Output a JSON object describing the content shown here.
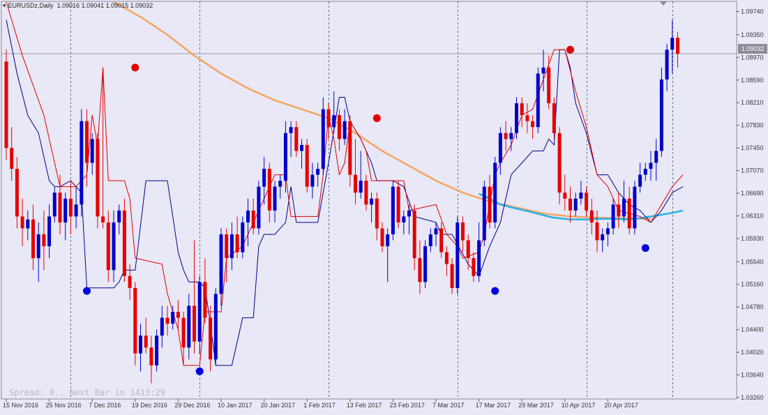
{
  "header": {
    "symbol_timeframe": "EURUSDz,Daily",
    "ohlc": "1.09016 1.09041 1.09015 1.09032"
  },
  "status": {
    "spread_text": "Spread: 0.. Next Bar in 1413:29"
  },
  "current_price": "1.09032",
  "colors": {
    "background": "#e8e8f6",
    "bull": "#0000cc",
    "bear": "#e60000",
    "envelope_upper": "#e00000",
    "envelope_lower": "#000088",
    "ma_long": "#f5a460",
    "ma_short": "#22b4e6",
    "grid": "#607080"
  },
  "chart_data": {
    "type": "candlestick",
    "instrument": "EURUSDz",
    "timeframe": "Daily",
    "y_axis": {
      "ticks": [
        "1.09740",
        "1.09350",
        "1.08970",
        "1.08590",
        "1.08210",
        "1.07830",
        "1.07450",
        "1.07070",
        "1.06690",
        "1.06310",
        "1.05930",
        "1.05540",
        "1.05160",
        "1.04780",
        "1.04400",
        "1.04020",
        "1.03640",
        "1.03260"
      ],
      "range": [
        1.0326,
        1.0984
      ]
    },
    "x_axis": {
      "tick_labels": [
        "15 Nov 2016",
        "25 Nov 2016",
        "7 Dec 2016",
        "19 Dec 2016",
        "29 Dec 2016",
        "10 Jan 2017",
        "20 Jan 2017",
        "1 Feb 2017",
        "13 Feb 2017",
        "23 Feb 2017",
        "7 Mar 2017",
        "17 Mar 2017",
        "29 Mar 2017",
        "10 Apr 2017",
        "20 Apr 2017"
      ],
      "tick_bar_index": [
        0,
        8,
        16,
        24,
        32,
        40,
        48,
        56,
        64,
        72,
        80,
        88,
        96,
        104,
        112
      ]
    },
    "vertical_grid_bar_index": [
      12,
      36,
      60,
      84,
      108,
      124
    ],
    "candles": [
      [
        1.089,
        1.091,
        1.0725,
        1.0745
      ],
      [
        1.0745,
        1.078,
        1.069,
        1.071
      ],
      [
        1.071,
        1.073,
        1.061,
        1.063
      ],
      [
        1.063,
        1.066,
        1.058,
        1.061
      ],
      [
        1.061,
        1.064,
        1.059,
        1.0625
      ],
      [
        1.0625,
        1.065,
        1.054,
        1.056
      ],
      [
        1.056,
        1.062,
        1.052,
        1.06
      ],
      [
        1.06,
        1.064,
        1.054,
        1.058
      ],
      [
        1.058,
        1.065,
        1.056,
        1.063
      ],
      [
        1.063,
        1.068,
        1.062,
        1.067
      ],
      [
        1.067,
        1.07,
        1.06,
        1.062
      ],
      [
        1.062,
        1.067,
        1.059,
        1.066
      ],
      [
        1.066,
        1.069,
        1.06,
        1.063
      ],
      [
        1.063,
        1.068,
        1.061,
        1.065
      ],
      [
        1.065,
        1.081,
        1.063,
        1.079
      ],
      [
        1.079,
        1.081,
        1.068,
        1.072
      ],
      [
        1.072,
        1.077,
        1.07,
        1.076
      ],
      [
        1.076,
        1.077,
        1.061,
        1.063
      ],
      [
        1.063,
        1.088,
        1.061,
        1.062
      ],
      [
        1.062,
        1.064,
        1.052,
        1.054
      ],
      [
        1.054,
        1.064,
        1.052,
        1.062
      ],
      [
        1.062,
        1.065,
        1.06,
        1.064
      ],
      [
        1.064,
        1.066,
        1.052,
        1.053
      ],
      [
        1.053,
        1.055,
        1.049,
        1.051
      ],
      [
        1.051,
        1.052,
        1.038,
        1.04
      ],
      [
        1.04,
        1.045,
        1.037,
        1.043
      ],
      [
        1.043,
        1.046,
        1.04,
        1.041
      ],
      [
        1.041,
        1.043,
        1.035,
        1.038
      ],
      [
        1.038,
        1.044,
        1.037,
        1.043
      ],
      [
        1.043,
        1.048,
        1.041,
        1.046
      ],
      [
        1.046,
        1.048,
        1.043,
        1.045
      ],
      [
        1.045,
        1.048,
        1.044,
        1.047
      ],
      [
        1.047,
        1.049,
        1.044,
        1.046
      ],
      [
        1.046,
        1.047,
        1.038,
        1.041
      ],
      [
        1.041,
        1.05,
        1.039,
        1.048
      ],
      [
        1.048,
        1.059,
        1.04,
        1.042
      ],
      [
        1.042,
        1.053,
        1.04,
        1.052
      ],
      [
        1.052,
        1.056,
        1.045,
        1.046
      ],
      [
        1.046,
        1.048,
        1.037,
        1.039
      ],
      [
        1.039,
        1.051,
        1.038,
        1.05
      ],
      [
        1.05,
        1.061,
        1.048,
        1.06
      ],
      [
        1.06,
        1.061,
        1.052,
        1.056
      ],
      [
        1.056,
        1.062,
        1.054,
        1.06
      ],
      [
        1.06,
        1.063,
        1.056,
        1.057
      ],
      [
        1.057,
        1.063,
        1.056,
        1.062
      ],
      [
        1.062,
        1.066,
        1.058,
        1.064
      ],
      [
        1.064,
        1.066,
        1.06,
        1.061
      ],
      [
        1.061,
        1.069,
        1.06,
        1.068
      ],
      [
        1.068,
        1.073,
        1.065,
        1.071
      ],
      [
        1.071,
        1.072,
        1.062,
        1.064
      ],
      [
        1.064,
        1.069,
        1.062,
        1.068
      ],
      [
        1.068,
        1.07,
        1.066,
        1.069
      ],
      [
        1.069,
        1.079,
        1.067,
        1.077
      ],
      [
        1.077,
        1.079,
        1.073,
        1.078
      ],
      [
        1.078,
        1.079,
        1.073,
        1.074
      ],
      [
        1.074,
        1.076,
        1.071,
        1.075
      ],
      [
        1.075,
        1.076,
        1.067,
        1.068
      ],
      [
        1.068,
        1.072,
        1.066,
        1.07
      ],
      [
        1.07,
        1.072,
        1.068,
        1.071
      ],
      [
        1.071,
        1.083,
        1.07,
        1.081
      ],
      [
        1.081,
        1.082,
        1.076,
        1.078
      ],
      [
        1.078,
        1.084,
        1.077,
        1.08
      ],
      [
        1.08,
        1.081,
        1.074,
        1.076
      ],
      [
        1.076,
        1.081,
        1.075,
        1.079
      ],
      [
        1.079,
        1.08,
        1.068,
        1.07
      ],
      [
        1.07,
        1.076,
        1.065,
        1.067
      ],
      [
        1.067,
        1.074,
        1.066,
        1.069
      ],
      [
        1.069,
        1.07,
        1.064,
        1.065
      ],
      [
        1.065,
        1.067,
        1.062,
        1.066
      ],
      [
        1.066,
        1.067,
        1.059,
        1.061
      ],
      [
        1.061,
        1.062,
        1.057,
        1.058
      ],
      [
        1.058,
        1.061,
        1.052,
        1.06
      ],
      [
        1.06,
        1.069,
        1.059,
        1.068
      ],
      [
        1.068,
        1.069,
        1.061,
        1.062
      ],
      [
        1.062,
        1.064,
        1.06,
        1.063
      ],
      [
        1.063,
        1.065,
        1.06,
        1.064
      ],
      [
        1.064,
        1.065,
        1.054,
        1.056
      ],
      [
        1.056,
        1.059,
        1.05,
        1.052
      ],
      [
        1.052,
        1.059,
        1.051,
        1.058
      ],
      [
        1.058,
        1.061,
        1.057,
        1.06
      ],
      [
        1.06,
        1.062,
        1.058,
        1.061
      ],
      [
        1.061,
        1.062,
        1.056,
        1.057
      ],
      [
        1.057,
        1.058,
        1.053,
        1.055
      ],
      [
        1.055,
        1.056,
        1.05,
        1.051
      ],
      [
        1.051,
        1.063,
        1.05,
        1.062
      ],
      [
        1.062,
        1.063,
        1.057,
        1.059
      ],
      [
        1.059,
        1.06,
        1.054,
        1.056
      ],
      [
        1.056,
        1.057,
        1.052,
        1.053
      ],
      [
        1.053,
        1.062,
        1.052,
        1.059
      ],
      [
        1.059,
        1.069,
        1.058,
        1.068
      ],
      [
        1.068,
        1.07,
        1.061,
        1.062
      ],
      [
        1.062,
        1.073,
        1.061,
        1.072
      ],
      [
        1.072,
        1.078,
        1.07,
        1.077
      ],
      [
        1.077,
        1.079,
        1.074,
        1.076
      ],
      [
        1.076,
        1.078,
        1.074,
        1.077
      ],
      [
        1.077,
        1.083,
        1.076,
        1.082
      ],
      [
        1.082,
        1.083,
        1.078,
        1.08
      ],
      [
        1.08,
        1.082,
        1.077,
        1.079
      ],
      [
        1.079,
        1.08,
        1.076,
        1.078
      ],
      [
        1.078,
        1.088,
        1.077,
        1.087
      ],
      [
        1.087,
        1.091,
        1.084,
        1.088
      ],
      [
        1.088,
        1.09,
        1.081,
        1.082
      ],
      [
        1.082,
        1.083,
        1.076,
        1.077
      ],
      [
        1.077,
        1.078,
        1.065,
        1.067
      ],
      [
        1.067,
        1.07,
        1.064,
        1.066
      ],
      [
        1.066,
        1.068,
        1.062,
        1.064
      ],
      [
        1.064,
        1.067,
        1.063,
        1.066
      ],
      [
        1.066,
        1.069,
        1.065,
        1.067
      ],
      [
        1.067,
        1.068,
        1.063,
        1.064
      ],
      [
        1.064,
        1.066,
        1.06,
        1.062
      ],
      [
        1.062,
        1.064,
        1.057,
        1.059
      ],
      [
        1.059,
        1.061,
        1.057,
        1.06
      ],
      [
        1.06,
        1.062,
        1.058,
        1.061
      ],
      [
        1.061,
        1.066,
        1.06,
        1.065
      ],
      [
        1.065,
        1.067,
        1.061,
        1.063
      ],
      [
        1.063,
        1.069,
        1.062,
        1.066
      ],
      [
        1.066,
        1.068,
        1.06,
        1.061
      ],
      [
        1.061,
        1.069,
        1.06,
        1.068
      ],
      [
        1.068,
        1.072,
        1.067,
        1.07
      ],
      [
        1.07,
        1.072,
        1.069,
        1.071
      ],
      [
        1.071,
        1.074,
        1.069,
        1.072
      ],
      [
        1.072,
        1.076,
        1.069,
        1.074
      ],
      [
        1.074,
        1.088,
        1.073,
        1.086
      ],
      [
        1.086,
        1.092,
        1.084,
        1.091
      ],
      [
        1.091,
        1.096,
        1.087,
        1.093
      ],
      [
        1.093,
        1.094,
        1.088,
        1.0903
      ]
    ],
    "envelope_upper": [
      [
        0,
        1.099
      ],
      [
        3,
        1.09
      ],
      [
        7,
        1.08
      ],
      [
        9,
        1.072
      ],
      [
        10,
        1.068
      ],
      [
        13,
        1.068
      ],
      [
        14,
        1.069
      ],
      [
        15,
        1.07
      ],
      [
        16,
        1.08
      ],
      [
        17,
        1.075
      ],
      [
        18,
        1.088
      ],
      [
        19,
        1.069
      ],
      [
        22,
        1.069
      ],
      [
        23,
        1.066
      ],
      [
        24,
        1.056
      ],
      [
        29,
        1.055
      ],
      [
        30,
        1.05
      ],
      [
        32,
        1.044
      ],
      [
        33,
        1.038
      ],
      [
        36,
        1.038
      ],
      [
        37,
        1.047
      ],
      [
        40,
        1.047
      ],
      [
        41,
        1.056
      ],
      [
        44,
        1.058
      ],
      [
        46,
        1.062
      ],
      [
        48,
        1.066
      ],
      [
        50,
        1.07
      ],
      [
        52,
        1.07
      ],
      [
        53,
        1.063
      ],
      [
        58,
        1.063
      ],
      [
        59,
        1.07
      ],
      [
        60,
        1.08
      ],
      [
        61,
        1.076
      ],
      [
        62,
        1.07
      ],
      [
        63,
        1.072
      ],
      [
        64,
        1.079
      ],
      [
        66,
        1.076
      ],
      [
        67,
        1.074
      ],
      [
        68,
        1.069
      ],
      [
        74,
        1.069
      ],
      [
        75,
        1.064
      ],
      [
        80,
        1.065
      ],
      [
        82,
        1.06
      ],
      [
        84,
        1.058
      ],
      [
        85,
        1.056
      ],
      [
        88,
        1.057
      ],
      [
        89,
        1.06
      ],
      [
        90,
        1.065
      ],
      [
        91,
        1.07
      ],
      [
        92,
        1.072
      ],
      [
        94,
        1.075
      ],
      [
        96,
        1.08
      ],
      [
        98,
        1.081
      ],
      [
        100,
        1.086
      ],
      [
        102,
        1.091
      ],
      [
        104,
        1.091
      ],
      [
        106,
        1.084
      ],
      [
        108,
        1.078
      ],
      [
        110,
        1.07
      ],
      [
        112,
        1.068
      ],
      [
        114,
        1.064
      ],
      [
        118,
        1.063
      ],
      [
        120,
        1.062
      ],
      [
        122,
        1.065
      ],
      [
        124,
        1.068
      ],
      [
        126,
        1.07
      ]
    ],
    "envelope_lower": [
      [
        0,
        1.096
      ],
      [
        2,
        1.087
      ],
      [
        4,
        1.08
      ],
      [
        6,
        1.077
      ],
      [
        8,
        1.069
      ],
      [
        9,
        1.068
      ],
      [
        10,
        1.068
      ],
      [
        12,
        1.069
      ],
      [
        14,
        1.067
      ],
      [
        15,
        1.051
      ],
      [
        20,
        1.051
      ],
      [
        21,
        1.052
      ],
      [
        22,
        1.054
      ],
      [
        24,
        1.054
      ],
      [
        26,
        1.069
      ],
      [
        30,
        1.069
      ],
      [
        32,
        1.057
      ],
      [
        33,
        1.054
      ],
      [
        34,
        1.052
      ],
      [
        36,
        1.052
      ],
      [
        37,
        1.051
      ],
      [
        38,
        1.045
      ],
      [
        39,
        1.038
      ],
      [
        42,
        1.038
      ],
      [
        44,
        1.046
      ],
      [
        46,
        1.046
      ],
      [
        47,
        1.058
      ],
      [
        48,
        1.06
      ],
      [
        50,
        1.06
      ],
      [
        51,
        1.061
      ],
      [
        52,
        1.062
      ],
      [
        53,
        1.068
      ],
      [
        54,
        1.062
      ],
      [
        58,
        1.062
      ],
      [
        60,
        1.072
      ],
      [
        62,
        1.083
      ],
      [
        63,
        1.083
      ],
      [
        64,
        1.079
      ],
      [
        66,
        1.076
      ],
      [
        68,
        1.072
      ],
      [
        69,
        1.069
      ],
      [
        72,
        1.069
      ],
      [
        74,
        1.068
      ],
      [
        76,
        1.063
      ],
      [
        80,
        1.062
      ],
      [
        81,
        1.06
      ],
      [
        83,
        1.06
      ],
      [
        86,
        1.055
      ],
      [
        88,
        1.053
      ],
      [
        90,
        1.058
      ],
      [
        91,
        1.06
      ],
      [
        92,
        1.062
      ],
      [
        94,
        1.07
      ],
      [
        96,
        1.072
      ],
      [
        98,
        1.074
      ],
      [
        100,
        1.074
      ],
      [
        101,
        1.076
      ],
      [
        102,
        1.075
      ],
      [
        103,
        1.091
      ],
      [
        104,
        1.091
      ],
      [
        105,
        1.088
      ],
      [
        106,
        1.082
      ],
      [
        108,
        1.077
      ],
      [
        110,
        1.07
      ],
      [
        112,
        1.07
      ],
      [
        114,
        1.067
      ],
      [
        116,
        1.065
      ],
      [
        118,
        1.064
      ],
      [
        120,
        1.062
      ],
      [
        122,
        1.064
      ],
      [
        124,
        1.067
      ],
      [
        126,
        1.068
      ]
    ],
    "ma_long": [
      [
        20,
        1.099
      ],
      [
        25,
        1.0965
      ],
      [
        30,
        1.0935
      ],
      [
        35,
        1.09
      ],
      [
        40,
        1.087
      ],
      [
        45,
        1.0845
      ],
      [
        50,
        1.0825
      ],
      [
        55,
        1.081
      ],
      [
        60,
        1.0795
      ],
      [
        65,
        1.077
      ],
      [
        70,
        1.074
      ],
      [
        75,
        1.0715
      ],
      [
        80,
        1.069
      ],
      [
        85,
        1.067
      ],
      [
        90,
        1.0655
      ],
      [
        95,
        1.0645
      ],
      [
        100,
        1.0635
      ],
      [
        105,
        1.063
      ],
      [
        110,
        1.0628
      ],
      [
        115,
        1.0627
      ],
      [
        120,
        1.0626
      ]
    ],
    "ma_short": [
      [
        88,
        1.0668
      ],
      [
        90,
        1.066
      ],
      [
        92,
        1.065
      ],
      [
        95,
        1.0643
      ],
      [
        98,
        1.0637
      ],
      [
        100,
        1.0632
      ],
      [
        102,
        1.0628
      ],
      [
        105,
        1.0625
      ],
      [
        108,
        1.0625
      ],
      [
        110,
        1.0626
      ],
      [
        113,
        1.0626
      ],
      [
        116,
        1.0625
      ],
      [
        118,
        1.0627
      ],
      [
        120,
        1.063
      ],
      [
        122,
        1.0633
      ],
      [
        124,
        1.0636
      ],
      [
        126,
        1.064
      ]
    ],
    "signal_dots": [
      {
        "bar": 15,
        "price": 1.0505,
        "color": "blue"
      },
      {
        "bar": 24,
        "price": 1.088,
        "color": "red"
      },
      {
        "bar": 36,
        "price": 1.037,
        "color": "blue"
      },
      {
        "bar": 69,
        "price": 1.0795,
        "color": "red"
      },
      {
        "bar": 91,
        "price": 1.0505,
        "color": "blue"
      },
      {
        "bar": 105,
        "price": 1.091,
        "color": "red"
      },
      {
        "bar": 119,
        "price": 1.0577,
        "color": "blue"
      }
    ],
    "current_price_value": 1.09032
  }
}
